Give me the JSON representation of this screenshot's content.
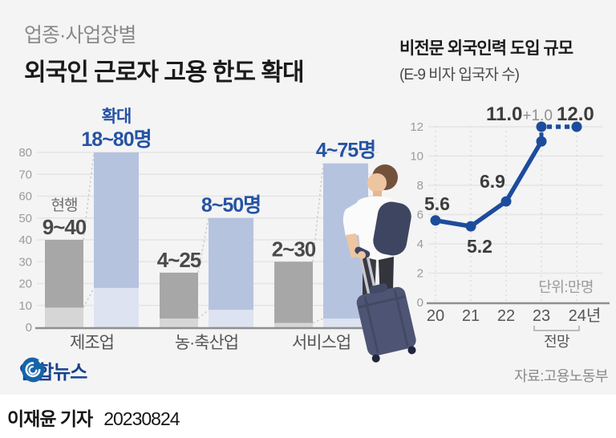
{
  "header": {
    "subtitle": "업종·사업장별",
    "title": "외국인 근로자 고용 한도 확대"
  },
  "right_header": {
    "title": "비전문 외국인력 도입 규모",
    "subtitle": "(E-9 비자 입국자 수)"
  },
  "chart_data": [
    {
      "type": "bar",
      "title": "업종·사업장별 외국인 근로자 고용 한도 확대",
      "categories": [
        "제조업",
        "농·축산업",
        "서비스업"
      ],
      "series": [
        {
          "name": "현행",
          "ranges": [
            [
              9,
              40
            ],
            [
              4,
              25
            ],
            [
              2,
              30
            ]
          ],
          "labels": [
            "9~40",
            "4~25",
            "2~30"
          ]
        },
        {
          "name": "확대",
          "ranges": [
            [
              18,
              80
            ],
            [
              8,
              50
            ],
            [
              4,
              75
            ]
          ],
          "labels": [
            "18~80명",
            "8~50명",
            "4~75명"
          ]
        }
      ],
      "ylim": [
        0,
        80
      ],
      "yticks": [
        0,
        10,
        20,
        30,
        40,
        50,
        60,
        70,
        80
      ],
      "grid": true,
      "colors": {
        "current": "#a7a7a8",
        "current_light": "#d6d6d7",
        "expanded": "#b5c3df",
        "expanded_light": "#dde3f1",
        "current_label": "#4a4a4a",
        "expanded_label": "#2553a3"
      }
    },
    {
      "type": "line",
      "title": "비전문 외국인력 도입 규모 (E-9 비자 입국자 수)",
      "categories": [
        "20",
        "21",
        "22",
        "23",
        "24년"
      ],
      "values": [
        5.6,
        5.2,
        6.9,
        11.0,
        12.0
      ],
      "point_labels": [
        "5.6",
        "5.2",
        "6.9",
        "11.0",
        "12.0"
      ],
      "increase_label": "+1.0",
      "unit_label": "단위:만명",
      "forecast_label": "전망",
      "forecast_from_index": 3,
      "ylim": [
        0,
        12
      ],
      "yticks": [
        0,
        2,
        4,
        6,
        8,
        10,
        12
      ],
      "grid": true,
      "colors": {
        "line": "#1d4c9c",
        "label": "#3c3c3c",
        "increase": "#8f8f8f"
      }
    }
  ],
  "footer": {
    "logo_text": "연합뉴스",
    "source": "자료:고용노동부",
    "byline": "이재윤 기자",
    "date": "20230824"
  }
}
